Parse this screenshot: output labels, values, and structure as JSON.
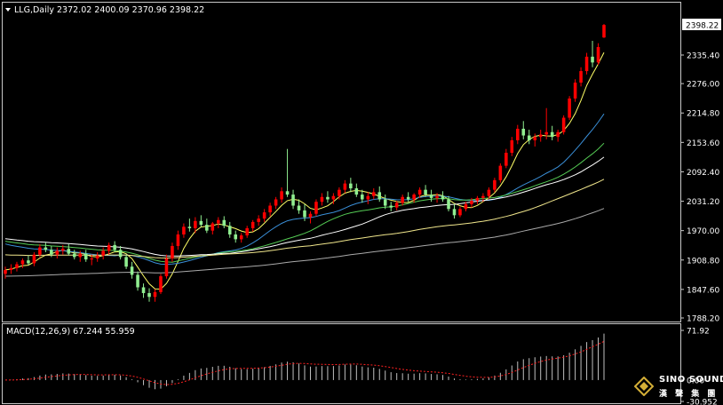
{
  "header": {
    "symbol_label": "LLG,Daily",
    "ohlc_text": "2372.02 2400.09 2370.96 2398.22"
  },
  "price_axis": {
    "labels": [
      "2398.22",
      "2335.40",
      "2276.00",
      "2214.80",
      "2153.60",
      "2092.40",
      "2031.20",
      "1970.00",
      "1908.80",
      "1847.60",
      "1788.20"
    ],
    "current_price": "2398.22"
  },
  "macd": {
    "label": "MACD(12,26,9) 67.244 55.959",
    "axis_labels": [
      "71.92",
      "0.00",
      "-30.952"
    ],
    "macd_value": 67.244,
    "signal_value": 55.959
  },
  "logo": {
    "name": "SINO SOUND",
    "subtitle": "漢 聲 集 團"
  },
  "colors": {
    "background": "#000000",
    "bull_candle": "#ff0000",
    "bear_candle": "#90ee90",
    "ma_fast": "#ffff66",
    "ma_blue": "#3a8fd8",
    "ma_green": "#55cc55",
    "ma_white": "#ffffff",
    "ma_long": "#f0e68c",
    "ma_slowest": "#aaaaaa",
    "macd_hist": "#c0c0c0",
    "macd_signal": "#ff2020"
  },
  "chart_data": {
    "type": "candlestick",
    "candles": [
      [
        1880,
        1895,
        1870,
        1888
      ],
      [
        1888,
        1900,
        1880,
        1892
      ],
      [
        1892,
        1905,
        1885,
        1900
      ],
      [
        1900,
        1912,
        1892,
        1908
      ],
      [
        1908,
        1918,
        1898,
        1902
      ],
      [
        1902,
        1925,
        1896,
        1920
      ],
      [
        1920,
        1942,
        1915,
        1935
      ],
      [
        1935,
        1945,
        1925,
        1930
      ],
      [
        1930,
        1938,
        1915,
        1920
      ],
      [
        1920,
        1935,
        1912,
        1928
      ],
      [
        1928,
        1940,
        1920,
        1932
      ],
      [
        1932,
        1942,
        1918,
        1922
      ],
      [
        1922,
        1930,
        1910,
        1915
      ],
      [
        1915,
        1928,
        1905,
        1922
      ],
      [
        1922,
        1930,
        1905,
        1910
      ],
      [
        1910,
        1920,
        1898,
        1912
      ],
      [
        1912,
        1925,
        1905,
        1918
      ],
      [
        1918,
        1935,
        1910,
        1928
      ],
      [
        1928,
        1945,
        1920,
        1940
      ],
      [
        1940,
        1948,
        1925,
        1930
      ],
      [
        1930,
        1938,
        1910,
        1915
      ],
      [
        1915,
        1920,
        1890,
        1895
      ],
      [
        1895,
        1905,
        1870,
        1878
      ],
      [
        1878,
        1885,
        1845,
        1852
      ],
      [
        1852,
        1860,
        1830,
        1840
      ],
      [
        1840,
        1850,
        1822,
        1832
      ],
      [
        1832,
        1848,
        1822,
        1842
      ],
      [
        1842,
        1880,
        1838,
        1875
      ],
      [
        1875,
        1920,
        1870,
        1912
      ],
      [
        1912,
        1945,
        1905,
        1938
      ],
      [
        1938,
        1970,
        1930,
        1962
      ],
      [
        1962,
        1985,
        1955,
        1978
      ],
      [
        1978,
        1995,
        1968,
        1975
      ],
      [
        1975,
        1998,
        1965,
        1990
      ],
      [
        1990,
        2002,
        1978,
        1982
      ],
      [
        1982,
        1995,
        1965,
        1970
      ],
      [
        1970,
        1988,
        1962,
        1985
      ],
      [
        1985,
        1998,
        1975,
        1992
      ],
      [
        1992,
        2000,
        1975,
        1980
      ],
      [
        1980,
        1988,
        1955,
        1962
      ],
      [
        1962,
        1970,
        1945,
        1952
      ],
      [
        1952,
        1965,
        1945,
        1960
      ],
      [
        1960,
        1980,
        1955,
        1975
      ],
      [
        1975,
        1992,
        1968,
        1988
      ],
      [
        1988,
        2002,
        1980,
        1995
      ],
      [
        1995,
        2015,
        1988,
        2008
      ],
      [
        2008,
        2028,
        2000,
        2022
      ],
      [
        2022,
        2040,
        2015,
        2035
      ],
      [
        2035,
        2060,
        2028,
        2052
      ],
      [
        2052,
        2140,
        2040,
        2045
      ],
      [
        2045,
        2055,
        2015,
        2022
      ],
      [
        2022,
        2035,
        2005,
        2012
      ],
      [
        2012,
        2025,
        1990,
        1998
      ],
      [
        1998,
        2010,
        1985,
        2005
      ],
      [
        2005,
        2035,
        2000,
        2030
      ],
      [
        2030,
        2048,
        2022,
        2040
      ],
      [
        2040,
        2052,
        2028,
        2035
      ],
      [
        2035,
        2048,
        2025,
        2042
      ],
      [
        2042,
        2060,
        2035,
        2055
      ],
      [
        2055,
        2075,
        2048,
        2068
      ],
      [
        2068,
        2080,
        2050,
        2058
      ],
      [
        2058,
        2068,
        2040,
        2045
      ],
      [
        2045,
        2055,
        2028,
        2035
      ],
      [
        2035,
        2050,
        2025,
        2042
      ],
      [
        2042,
        2058,
        2035,
        2050
      ],
      [
        2050,
        2062,
        2030,
        2035
      ],
      [
        2035,
        2045,
        2015,
        2022
      ],
      [
        2022,
        2030,
        2010,
        2018
      ],
      [
        2018,
        2032,
        2012,
        2028
      ],
      [
        2028,
        2045,
        2022,
        2040
      ],
      [
        2040,
        2050,
        2030,
        2035
      ],
      [
        2035,
        2048,
        2028,
        2045
      ],
      [
        2045,
        2060,
        2038,
        2055
      ],
      [
        2055,
        2065,
        2040,
        2045
      ],
      [
        2045,
        2055,
        2030,
        2038
      ],
      [
        2038,
        2048,
        2028,
        2042
      ],
      [
        2042,
        2052,
        2030,
        2035
      ],
      [
        2035,
        2042,
        2010,
        2015
      ],
      [
        2015,
        2025,
        1995,
        2002
      ],
      [
        2002,
        2020,
        1998,
        2015
      ],
      [
        2015,
        2030,
        2010,
        2025
      ],
      [
        2025,
        2038,
        2018,
        2032
      ],
      [
        2032,
        2042,
        2025,
        2038
      ],
      [
        2038,
        2048,
        2030,
        2042
      ],
      [
        2042,
        2060,
        2036,
        2055
      ],
      [
        2055,
        2080,
        2050,
        2075
      ],
      [
        2075,
        2110,
        2070,
        2105
      ],
      [
        2105,
        2140,
        2100,
        2132
      ],
      [
        2132,
        2165,
        2125,
        2158
      ],
      [
        2158,
        2190,
        2150,
        2182
      ],
      [
        2182,
        2198,
        2160,
        2168
      ],
      [
        2168,
        2180,
        2150,
        2158
      ],
      [
        2158,
        2172,
        2145,
        2165
      ],
      [
        2165,
        2180,
        2155,
        2170
      ],
      [
        2170,
        2225,
        2160,
        2175
      ],
      [
        2175,
        2188,
        2158,
        2165
      ],
      [
        2165,
        2180,
        2155,
        2175
      ],
      [
        2175,
        2210,
        2170,
        2205
      ],
      [
        2205,
        2250,
        2200,
        2245
      ],
      [
        2245,
        2285,
        2238,
        2278
      ],
      [
        2278,
        2310,
        2270,
        2302
      ],
      [
        2302,
        2340,
        2295,
        2332
      ],
      [
        2332,
        2365,
        2310,
        2320
      ],
      [
        2320,
        2360,
        2315,
        2352
      ],
      [
        2372,
        2400,
        2371,
        2398
      ]
    ]
  }
}
